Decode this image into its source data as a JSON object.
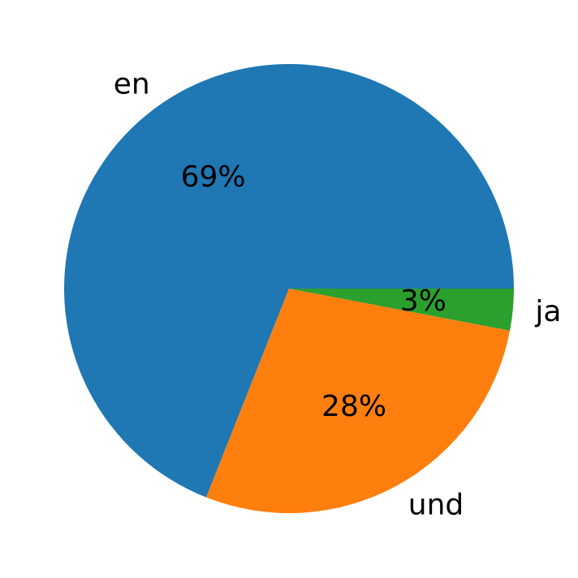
{
  "chart_data": {
    "type": "pie",
    "title": "",
    "start_angle": 0,
    "direction": "counterclockwise",
    "slices": [
      {
        "label": "en",
        "value": 69,
        "pct_label": "69%",
        "color": "#1f77b4"
      },
      {
        "label": "und",
        "value": 28,
        "pct_label": "28%",
        "color": "#ff7f0e"
      },
      {
        "label": "ja",
        "value": 3,
        "pct_label": "3%",
        "color": "#2ca02c"
      }
    ]
  }
}
